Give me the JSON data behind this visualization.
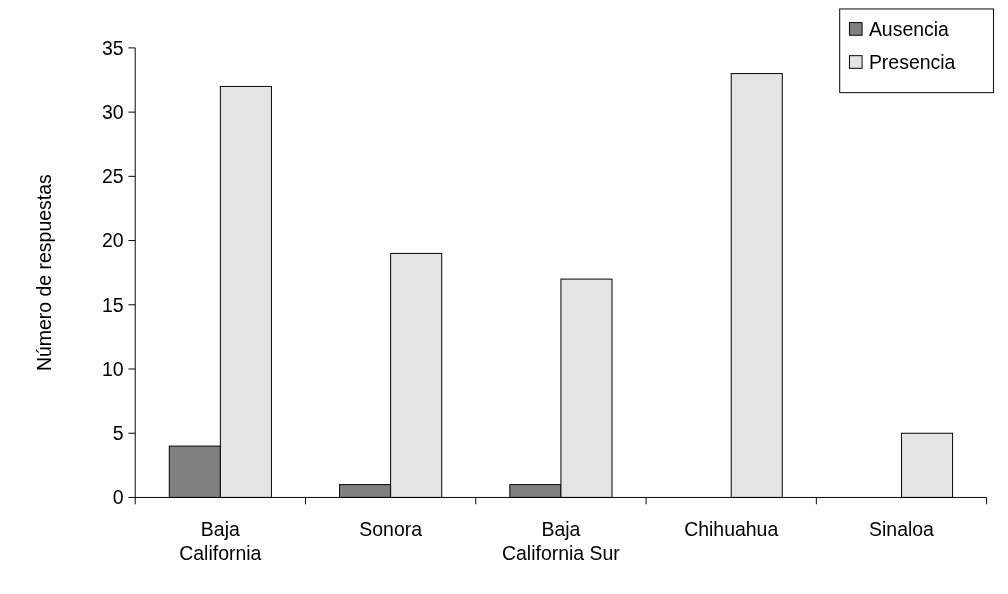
{
  "chart_data": {
    "type": "bar",
    "ylabel": "Número de respuestas",
    "categories": [
      "Baja California",
      "Sonora",
      "Baja California Sur",
      "Chihuahua",
      "Sinaloa"
    ],
    "series": [
      {
        "name": "Ausencia",
        "color": "#808080",
        "values": [
          4,
          1,
          1,
          0,
          0
        ]
      },
      {
        "name": "Presencia",
        "color": "#e4e4e4",
        "values": [
          32,
          19,
          17,
          33,
          5
        ]
      }
    ],
    "ylim": [
      0,
      35
    ],
    "yticks": [
      0,
      5,
      10,
      15,
      20,
      25,
      30,
      35
    ],
    "grid": false,
    "legend": "top right"
  }
}
